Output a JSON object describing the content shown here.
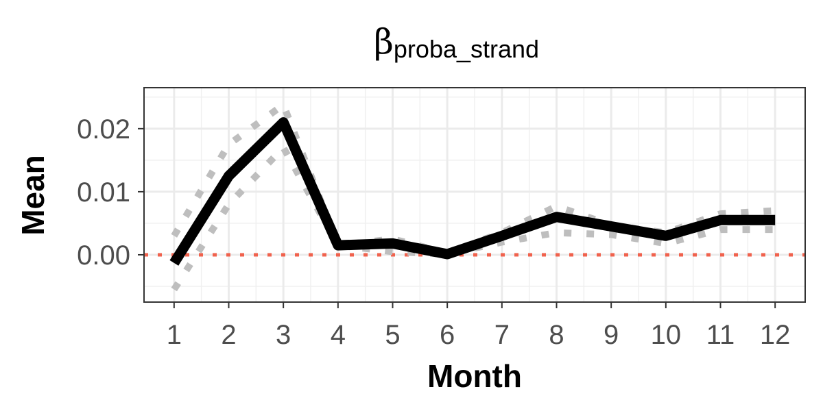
{
  "chart_data": {
    "type": "line",
    "title": "β",
    "title_subscript": "proba_strand",
    "xlabel": "Month",
    "ylabel": "Mean",
    "x": [
      1,
      2,
      3,
      4,
      5,
      6,
      7,
      8,
      9,
      10,
      11,
      12
    ],
    "x_tick_labels": [
      "1",
      "2",
      "3",
      "4",
      "5",
      "6",
      "7",
      "8",
      "9",
      "10",
      "11",
      "12"
    ],
    "y_ticks": [
      0.0,
      0.01,
      0.02
    ],
    "y_tick_labels": [
      "0.00",
      "0.01",
      "0.02"
    ],
    "xlim": [
      0.45,
      12.55
    ],
    "ylim": [
      -0.0075,
      0.0265
    ],
    "grid": true,
    "series": [
      {
        "style": "solid",
        "color": "#000000",
        "values": [
          -0.0013,
          0.0125,
          0.021,
          0.0015,
          0.0018,
          0.0001,
          0.003,
          0.006,
          0.0045,
          0.003,
          0.0055,
          0.0055
        ]
      },
      {
        "style": "dotted",
        "color": "#bebebe",
        "values": [
          0.003,
          0.0175,
          0.0238,
          0.0015,
          0.0025,
          0.0003,
          0.0035,
          0.0077,
          0.0047,
          0.0035,
          0.0065,
          0.007
        ]
      },
      {
        "style": "dotted",
        "color": "#bebebe",
        "values": [
          -0.0055,
          0.008,
          0.017,
          0.0015,
          0.0005,
          0.0001,
          0.002,
          0.0035,
          0.0032,
          0.0018,
          0.004,
          0.004
        ]
      }
    ],
    "reference_line": {
      "y": 0,
      "style": "dotted",
      "color": "#f0624d"
    }
  }
}
